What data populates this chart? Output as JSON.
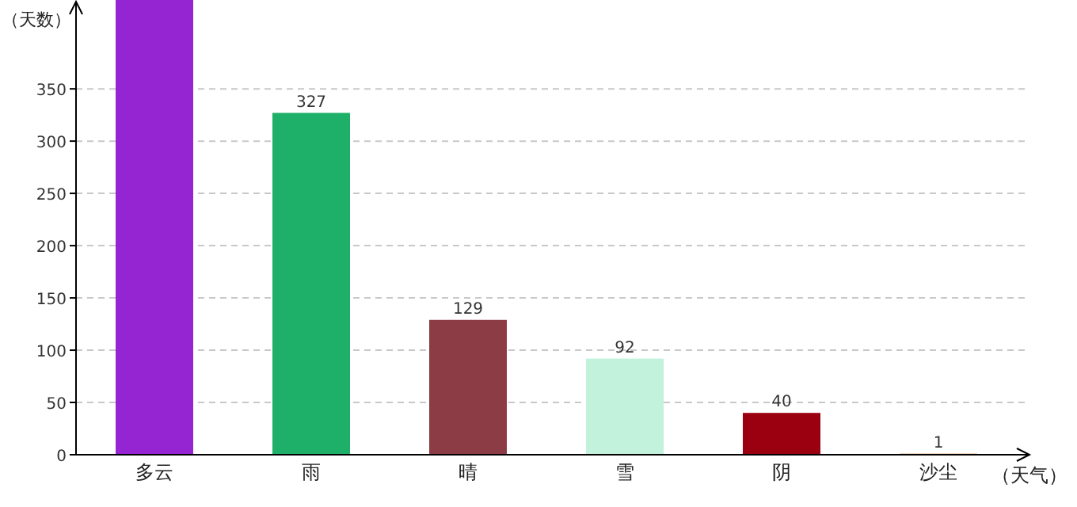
{
  "chart_data": {
    "type": "bar",
    "xlabel": "（天气）",
    "ylabel": "（天数）",
    "categories": [
      "多云",
      "雨",
      "晴",
      "雪",
      "阴",
      "沙尘"
    ],
    "values": [
      435,
      327,
      129,
      92,
      40,
      1
    ],
    "value_labels": [
      null,
      "327",
      "129",
      "92",
      "40",
      "1"
    ],
    "colors": [
      "#9525d3",
      "#1eaf68",
      "#8b3c45",
      "#c3f2dc",
      "#9b0011",
      "#c87832"
    ],
    "ylim": [
      0,
      435
    ],
    "yticks": [
      0,
      50,
      100,
      150,
      200,
      250,
      300,
      350
    ],
    "grid": "y"
  }
}
